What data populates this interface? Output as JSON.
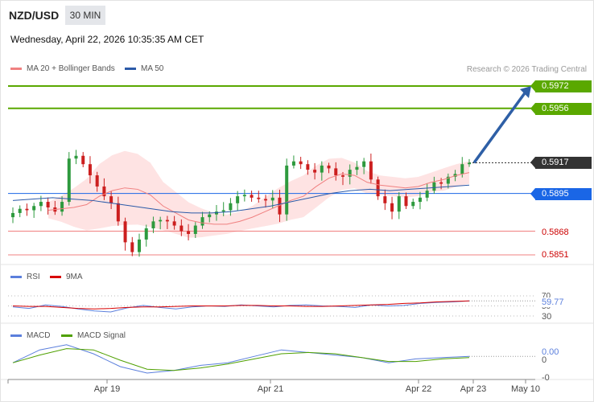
{
  "header": {
    "pair": "NZD/USD",
    "timeframe": "30 MIN",
    "datetime": "Wednesday, April 22, 2026 10:35:35 AM CET"
  },
  "legend": {
    "ma20": "MA 20 + Bollinger Bands",
    "ma50": "MA 50",
    "ma20_color": "#f08080",
    "ma50_color": "#2b5aa8"
  },
  "copyright": "Research © 2026 Trading Central",
  "levels": {
    "resistance_2": "0.5972",
    "resistance_1": "0.5956",
    "current": "0.5917",
    "pivot": "0.5895",
    "support_1": "0.5868",
    "support_2": "0.5851",
    "resistance_color": "#5aa800",
    "pivot_color": "#1a66e6",
    "support_color": "#f08080",
    "current_color": "#333333"
  },
  "rsi_panel": {
    "label_rsi": "RSI",
    "label_ma": "9MA",
    "rsi_color": "#5b7fdc",
    "ma_color": "#d80000",
    "value": "59.77",
    "tick_70": "70",
    "tick_50": "50",
    "tick_30": "30"
  },
  "macd_panel": {
    "label_macd": "MACD",
    "label_signal": "MACD Signal",
    "macd_color": "#5b7fdc",
    "signal_color": "#4fa000",
    "value": "0.00",
    "tick_0": "0",
    "tick_neg0": "-0"
  },
  "x_axis": {
    "labels": [
      "Apr 19",
      "Apr 21",
      "Apr 22",
      "Apr 23",
      "May 10"
    ]
  },
  "chart_data": {
    "type": "line",
    "title": "NZD/USD",
    "subtitle": "30 MIN",
    "xlabel": "",
    "ylabel": "",
    "ylim": [
      0.5843,
      0.5979
    ],
    "x_ticks": [
      "Apr 19",
      "Apr 21",
      "Apr 22",
      "Apr 23",
      "May 10"
    ],
    "close": [
      0.5881,
      0.5884,
      0.5883,
      0.5886,
      0.5889,
      0.5885,
      0.5882,
      0.5889,
      0.592,
      0.5922,
      0.5916,
      0.5908,
      0.59,
      0.5893,
      0.5888,
      0.5875,
      0.586,
      0.5853,
      0.5862,
      0.587,
      0.5875,
      0.5876,
      0.5875,
      0.5872,
      0.5868,
      0.5866,
      0.5872,
      0.5878,
      0.588,
      0.5882,
      0.5883,
      0.5888,
      0.5893,
      0.5894,
      0.5892,
      0.5891,
      0.589,
      0.5892,
      0.588,
      0.5915,
      0.5918,
      0.5916,
      0.5912,
      0.591,
      0.5915,
      0.5913,
      0.5908,
      0.5907,
      0.5912,
      0.5914,
      0.5918,
      0.5905,
      0.5893,
      0.5888,
      0.5882,
      0.5893,
      0.5886,
      0.5889,
      0.5892,
      0.5897,
      0.5903,
      0.5902,
      0.5907,
      0.5909,
      0.5916,
      0.5917
    ],
    "series": [
      {
        "name": "MA 20 + Bollinger Bands",
        "values": [
          0.5883,
          0.5884,
          0.5885,
          0.5887,
          0.5893,
          0.5897,
          0.5899,
          0.5898,
          0.5894,
          0.5886,
          0.5881,
          0.5876,
          0.5874,
          0.5873,
          0.5873,
          0.5875,
          0.5878,
          0.5882,
          0.5886,
          0.589,
          0.5893,
          0.59,
          0.5906,
          0.5909,
          0.5908,
          0.5903,
          0.5901,
          0.59,
          0.5899,
          0.59,
          0.5903,
          0.5905,
          0.5908,
          0.591
        ]
      },
      {
        "name": "MA 50",
        "values": [
          0.589,
          0.5891,
          0.5892,
          0.5891,
          0.589,
          0.5888,
          0.5886,
          0.5884,
          0.5882,
          0.5881,
          0.5881,
          0.5882,
          0.5884,
          0.5886,
          0.5889,
          0.5892,
          0.5895,
          0.5897,
          0.5898,
          0.5897,
          0.5898,
          0.5899,
          0.59,
          0.5901
        ]
      }
    ],
    "levels": [
      {
        "label": "0.5972",
        "value": 0.5972
      },
      {
        "label": "0.5956",
        "value": 0.5956
      },
      {
        "label": "0.5917",
        "value": 0.5917
      },
      {
        "label": "0.5895",
        "value": 0.5895
      },
      {
        "label": "0.5868",
        "value": 0.5868
      },
      {
        "label": "0.5851",
        "value": 0.5851
      }
    ],
    "projection": {
      "from": 0.5917,
      "to": 0.5972
    },
    "rsi": [
      48,
      45,
      52,
      49,
      44,
      40,
      38,
      46,
      51,
      47,
      44,
      48,
      50,
      49,
      52,
      50,
      48,
      51,
      52,
      50,
      49,
      47,
      52,
      50,
      51,
      55,
      57,
      58,
      60
    ],
    "rsi_ma": [
      50,
      49,
      49,
      47,
      45,
      44,
      45,
      47,
      48,
      48,
      49,
      50,
      50,
      50,
      51,
      51,
      50,
      50,
      49,
      49,
      50,
      51,
      52,
      53,
      55,
      56,
      58,
      59,
      60
    ],
    "macd": [
      -0.0002,
      0.0008,
      0.0012,
      0.0005,
      -0.0005,
      -0.001,
      -0.0008,
      -0.0004,
      -0.0002,
      0.0003,
      0.0008,
      0.0006,
      0.0004,
      0.0002,
      -0.0002,
      0.0001,
      0.0002,
      0.0003
    ],
    "macd_signal": [
      -0.0002,
      0.0004,
      0.0009,
      0.0008,
      0.0,
      -0.0007,
      -0.0008,
      -0.0006,
      -0.0003,
      0.0001,
      0.0005,
      0.0006,
      0.0005,
      0.0002,
      -0.0001,
      -0.0001,
      0.0001,
      0.0002
    ]
  }
}
